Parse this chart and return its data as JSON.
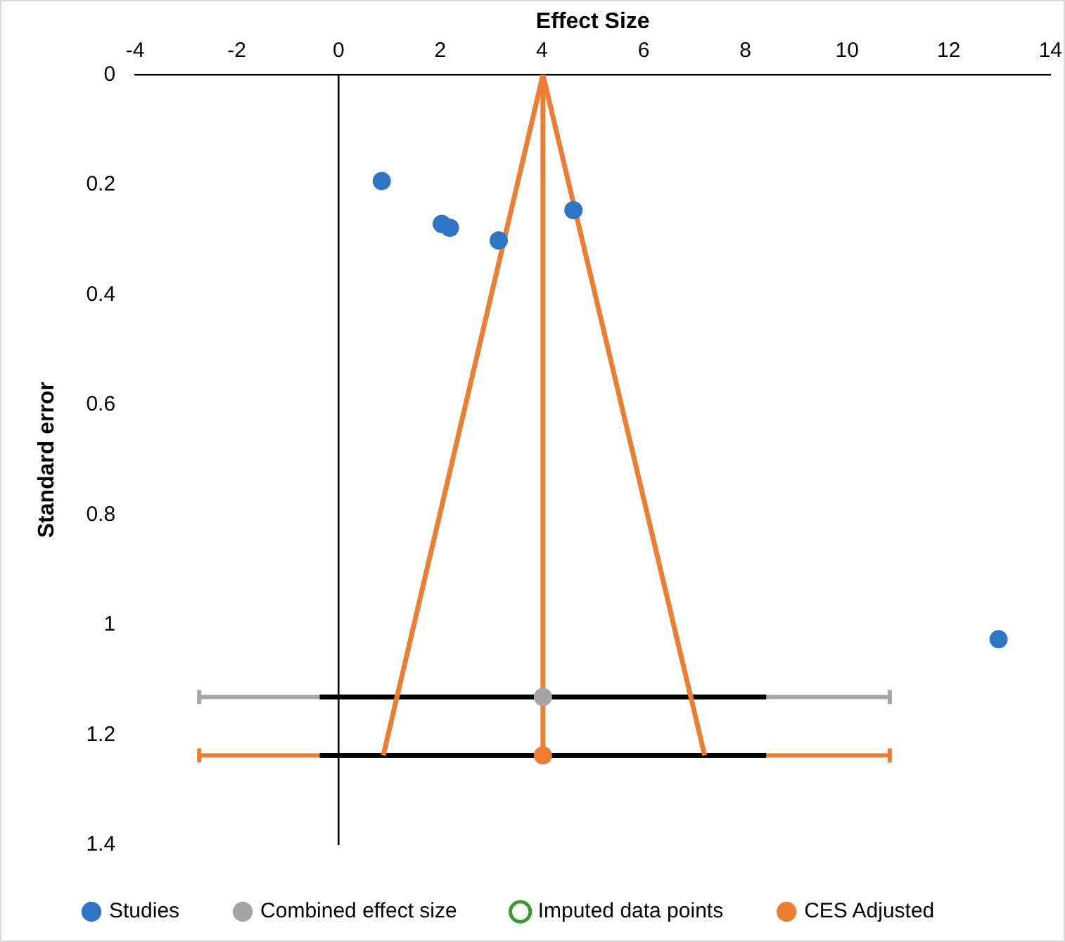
{
  "chart_data": {
    "type": "scatter",
    "xlabel": "Effect Size",
    "ylabel": "Standard error",
    "xlim": [
      -4,
      14
    ],
    "xticks": [
      -4,
      -2,
      0,
      2,
      4,
      6,
      8,
      10,
      12,
      14
    ],
    "ylim": [
      1.4,
      0
    ],
    "yticks": [
      0,
      0.2,
      0.4,
      0.6,
      0.8,
      1,
      1.2,
      1.4
    ],
    "grid": false,
    "legend": "bottom",
    "marker": "circle",
    "ref_lines": [
      {
        "axis": "x",
        "value": 0,
        "color": "#000000"
      }
    ],
    "series": [
      {
        "name": "Studies",
        "type": "scatter",
        "color": "#2e75c6",
        "x": [
          0.85,
          2.03,
          2.19,
          3.15,
          4.62,
          12.98
        ],
        "values": [
          0.193,
          0.271,
          0.278,
          0.301,
          0.246,
          1.026
        ]
      },
      {
        "name": "Combined effect size",
        "type": "scatter",
        "color": "#a5a5a5",
        "x": [
          4.02
        ],
        "values": [
          1.131
        ],
        "xerrors": [
          [
            -2.74,
            10.84
          ]
        ]
      },
      {
        "name": "Imputed data points",
        "type": "scatter",
        "color": "#3a9a32"
      },
      {
        "name": "CES Adjusted",
        "type": "scatter",
        "color": "#ed7d31",
        "x": [
          4.02
        ],
        "values": [
          1.237
        ],
        "xerrors": [
          [
            -2.74,
            10.84
          ]
        ]
      },
      {
        "type": "line",
        "color": "#ed7d31",
        "marker": "none",
        "x": [
          0.88,
          4.02,
          7.2
        ],
        "values": [
          1.237,
          0,
          1.237
        ]
      },
      {
        "type": "line",
        "color": "#ed7d31",
        "marker": "none",
        "x": [
          4.02,
          4.02
        ],
        "values": [
          0,
          1.237
        ]
      },
      {
        "type": "line",
        "color": "#000000",
        "marker": "none",
        "x": [
          -0.37,
          8.41
        ],
        "values": [
          1.131,
          1.131
        ]
      },
      {
        "type": "line",
        "color": "#000000",
        "marker": "none",
        "x": [
          -0.37,
          8.41
        ],
        "values": [
          1.237,
          1.237
        ]
      }
    ]
  }
}
